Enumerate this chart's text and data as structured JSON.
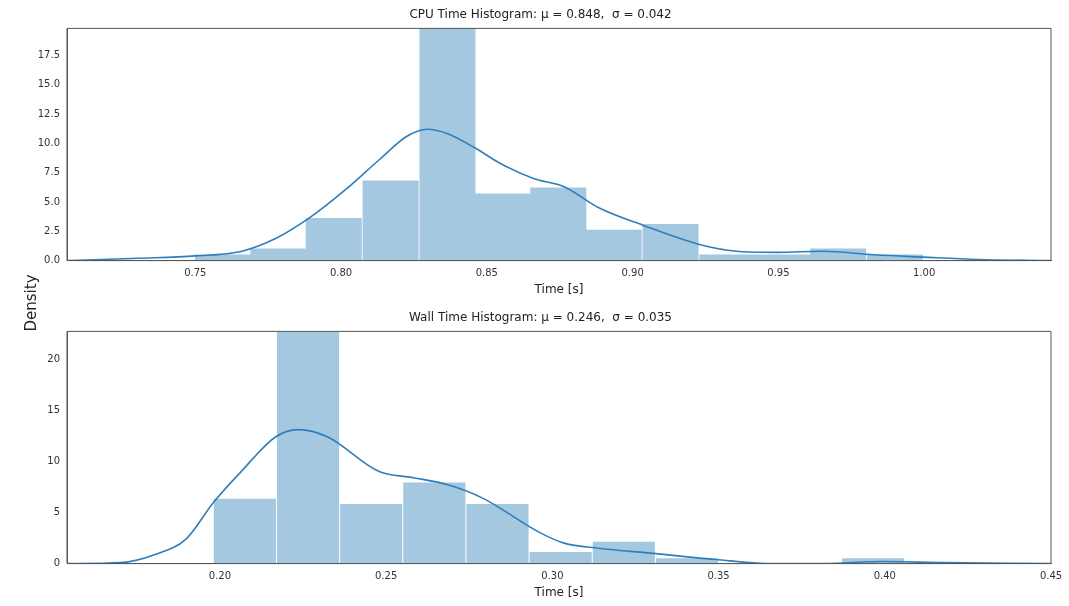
{
  "chart_data": [
    {
      "type": "histogram",
      "title": "CPU Time Histogram: μ = 0.848,  σ = 0.042",
      "xlabel": "Time [s]",
      "ylabel": "Density",
      "xlim": [
        0.706,
        1.0435
      ],
      "ylim": [
        0,
        19.8
      ],
      "xticks": [
        {
          "value": 0.75,
          "label": "0.75"
        },
        {
          "value": 0.8,
          "label": "0.80"
        },
        {
          "value": 0.85,
          "label": "0.85"
        },
        {
          "value": 0.9,
          "label": "0.90"
        },
        {
          "value": 0.95,
          "label": "0.95"
        },
        {
          "value": 1.0,
          "label": "1.00"
        }
      ],
      "yticks": [
        {
          "value": 0,
          "label": "0.0"
        },
        {
          "value": 2.5,
          "label": "2.5"
        },
        {
          "value": 5,
          "label": "5.0"
        },
        {
          "value": 7.5,
          "label": "7.5"
        },
        {
          "value": 10,
          "label": "10.0"
        },
        {
          "value": 12.5,
          "label": "12.5"
        },
        {
          "value": 15,
          "label": "15.0"
        },
        {
          "value": 17.5,
          "label": "17.5"
        }
      ],
      "series": [
        {
          "color": "#a5c8e1",
          "bins": [
            0.75,
            0.769,
            0.788,
            0.807,
            0.827,
            0.846,
            0.865,
            0.884,
            0.903,
            0.923,
            0.942,
            0.961,
            0.98,
            1.0
          ],
          "values": [
            0.5,
            1.0,
            3.6,
            6.8,
            19.8,
            5.7,
            6.2,
            2.6,
            3.1,
            0.5,
            0.5,
            1.0,
            0.5
          ]
        },
        {
          "type": "line",
          "color": "#2f7ebc",
          "x": [
            0.706,
            0.7305,
            0.75,
            0.766,
            0.7777,
            0.7895,
            0.8013,
            0.8131,
            0.8226,
            0.8297,
            0.8368,
            0.846,
            0.8545,
            0.866,
            0.8765,
            0.8884,
            0.9037,
            0.9226,
            0.9356,
            0.9497,
            0.9651,
            0.9828,
            0.9996,
            1.0183,
            1.0435
          ],
          "values": [
            0,
            0.2,
            0.4,
            0.8,
            1.9,
            3.7,
            6.0,
            8.6,
            10.6,
            11.2,
            10.8,
            9.6,
            8.3,
            7.0,
            6.3,
            4.5,
            3.0,
            1.4,
            0.8,
            0.7,
            0.8,
            0.5,
            0.3,
            0.1,
            0
          ]
        }
      ]
    },
    {
      "type": "histogram",
      "title": "Wall Time Histogram: μ = 0.246,  σ = 0.035",
      "xlabel": "Time [s]",
      "xlim": [
        0.154,
        0.45
      ],
      "ylim": [
        0,
        22.7
      ],
      "xticks": [
        {
          "value": 0.2,
          "label": "0.20"
        },
        {
          "value": 0.25,
          "label": "0.25"
        },
        {
          "value": 0.3,
          "label": "0.30"
        },
        {
          "value": 0.35,
          "label": "0.35"
        },
        {
          "value": 0.4,
          "label": "0.40"
        },
        {
          "value": 0.45,
          "label": "0.45"
        }
      ],
      "yticks": [
        0,
        5,
        10,
        15,
        20
      ],
      "series": [
        {
          "color": "#a5c8e1",
          "bins": [
            0.198,
            0.217,
            0.236,
            0.255,
            0.274,
            0.293,
            0.312,
            0.331,
            0.35,
            0.368,
            0.387,
            0.406
          ],
          "values": [
            6.3,
            22.7,
            5.8,
            7.9,
            5.8,
            1.1,
            2.1,
            0.5,
            0,
            0,
            0.5
          ]
        },
        {
          "type": "line",
          "color": "#2f7ebc",
          "x": [
            0.154,
            0.1702,
            0.1805,
            0.1898,
            0.1981,
            0.2064,
            0.2168,
            0.2236,
            0.2323,
            0.2479,
            0.2582,
            0.2686,
            0.279,
            0.2964,
            0.3035,
            0.3139,
            0.3304,
            0.3491,
            0.3657,
            0.3812,
            0.3999,
            0.4175,
            0.45
          ],
          "values": [
            0,
            0.1,
            0.9,
            2.4,
            6.0,
            9.0,
            12.4,
            13.1,
            12.4,
            9.0,
            8.4,
            7.7,
            6.4,
            3.0,
            2.0,
            1.5,
            1.0,
            0.4,
            0,
            0,
            0.2,
            0.1,
            0
          ]
        }
      ]
    }
  ]
}
